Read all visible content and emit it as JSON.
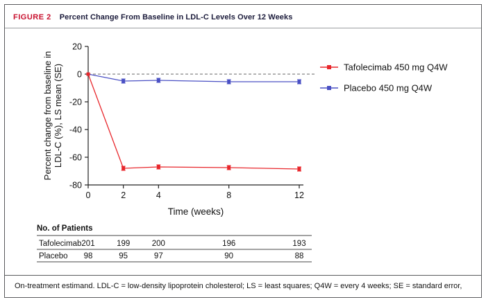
{
  "header": {
    "figure_label": "FIGURE 2",
    "title": "Percent Change From Baseline in LDL-C Levels Over 12 Weeks",
    "accent_color": "#c8102e"
  },
  "chart_data": {
    "type": "line",
    "x": [
      0,
      2,
      4,
      8,
      12
    ],
    "x_max": 12,
    "xticks": [
      0,
      2,
      4,
      8,
      12
    ],
    "yticks": [
      20,
      0,
      -20,
      -40,
      -60,
      -80
    ],
    "ylim": [
      -80,
      20
    ],
    "xlabel": "Time (weeks)",
    "ylabel_lines": [
      "Percent change from baseline in",
      "LDL-C (%), LS mean (SE)"
    ],
    "zero_line_dashed": true,
    "legend_position": "right",
    "series": [
      {
        "name": "Tafolecimab 450 mg Q4W",
        "color": "#e8262b",
        "values": [
          0,
          -68,
          -67,
          -67.5,
          -68.5
        ],
        "se": [
          0,
          1.5,
          1.5,
          1.5,
          1.5
        ]
      },
      {
        "name": "Placebo 450 mg Q4W",
        "color": "#4a50c4",
        "values": [
          0,
          -5,
          -4.5,
          -5.5,
          -5.5
        ],
        "se": [
          0,
          1.5,
          1.5,
          1.5,
          1.5
        ]
      }
    ]
  },
  "patients_table": {
    "title": "No. of Patients",
    "rows": [
      {
        "label": "Tafolecimab",
        "values": [
          "201",
          "199",
          "200",
          "196",
          "193"
        ]
      },
      {
        "label": "Placebo",
        "values": [
          "98",
          "95",
          "97",
          "90",
          "88"
        ]
      }
    ]
  },
  "footer": {
    "note": "On-treatment estimand. LDL-C = low-density lipoprotein cholesterol; LS = least squares; Q4W = every 4 weeks; SE = standard error,"
  }
}
